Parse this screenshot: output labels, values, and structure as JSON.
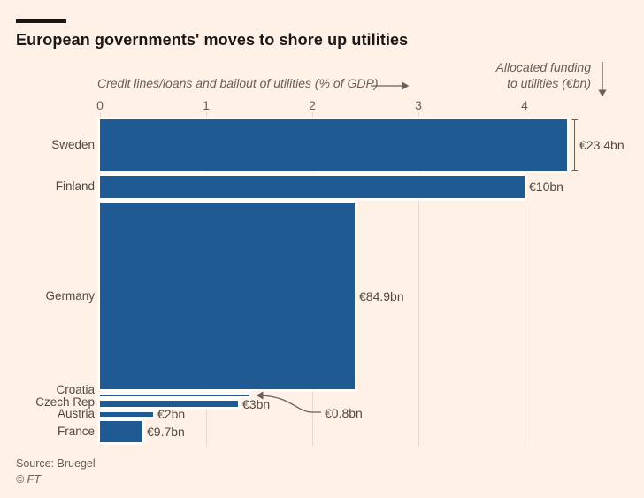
{
  "header": {
    "title": "European governments' moves to shore up utilities"
  },
  "chart_data": {
    "type": "bar",
    "variant": "horizontal variable-height bars: bar length = credit lines/loans and bailouts as % of GDP, bar thickness = allocated funding in EUR bn",
    "x_axis": {
      "label": "Credit lines/loans and bailout of utilities (% of GDP)",
      "ticks": [
        "0",
        "1",
        "2",
        "3",
        "4"
      ],
      "range_pct_of_gdp": [
        0,
        5.1
      ],
      "grid": true
    },
    "funding_axis": {
      "label_lines": [
        "Allocated funding",
        "to utilities (€bn)"
      ]
    },
    "series": [
      {
        "country": "Sweden",
        "pct_of_gdp": 4.4,
        "funding_eur_bn": 23.4,
        "funding_label": "€23.4bn",
        "annotation": "bracket"
      },
      {
        "country": "Finland",
        "pct_of_gdp": 4.0,
        "funding_eur_bn": 10.0,
        "funding_label": "€10bn",
        "annotation": "inline"
      },
      {
        "country": "Germany",
        "pct_of_gdp": 2.4,
        "funding_eur_bn": 84.9,
        "funding_label": "€84.9bn",
        "annotation": "inline"
      },
      {
        "country": "Croatia",
        "pct_of_gdp": 1.4,
        "funding_eur_bn": 0.8,
        "funding_label": "€0.8bn",
        "annotation": "callout"
      },
      {
        "country": "Czech Rep",
        "pct_of_gdp": 1.3,
        "funding_eur_bn": 3.0,
        "funding_label": "€3bn",
        "annotation": "inline"
      },
      {
        "country": "Austria",
        "pct_of_gdp": 0.5,
        "funding_eur_bn": 2.0,
        "funding_label": "€2bn",
        "annotation": "inline"
      },
      {
        "country": "France",
        "pct_of_gdp": 0.4,
        "funding_eur_bn": 9.7,
        "funding_label": "€9.7bn",
        "annotation": "inline"
      }
    ]
  },
  "footer": {
    "source": "Source: Bruegel",
    "credit": "© FT"
  },
  "colors": {
    "background": "#FFF1E5",
    "bar": "#1F5A93",
    "gridline": "#E8D9C9",
    "title_text": "#1A1817",
    "muted_text": "#66605B",
    "label_text": "#4F4A45",
    "bar_gap": "#FFFFFF"
  }
}
